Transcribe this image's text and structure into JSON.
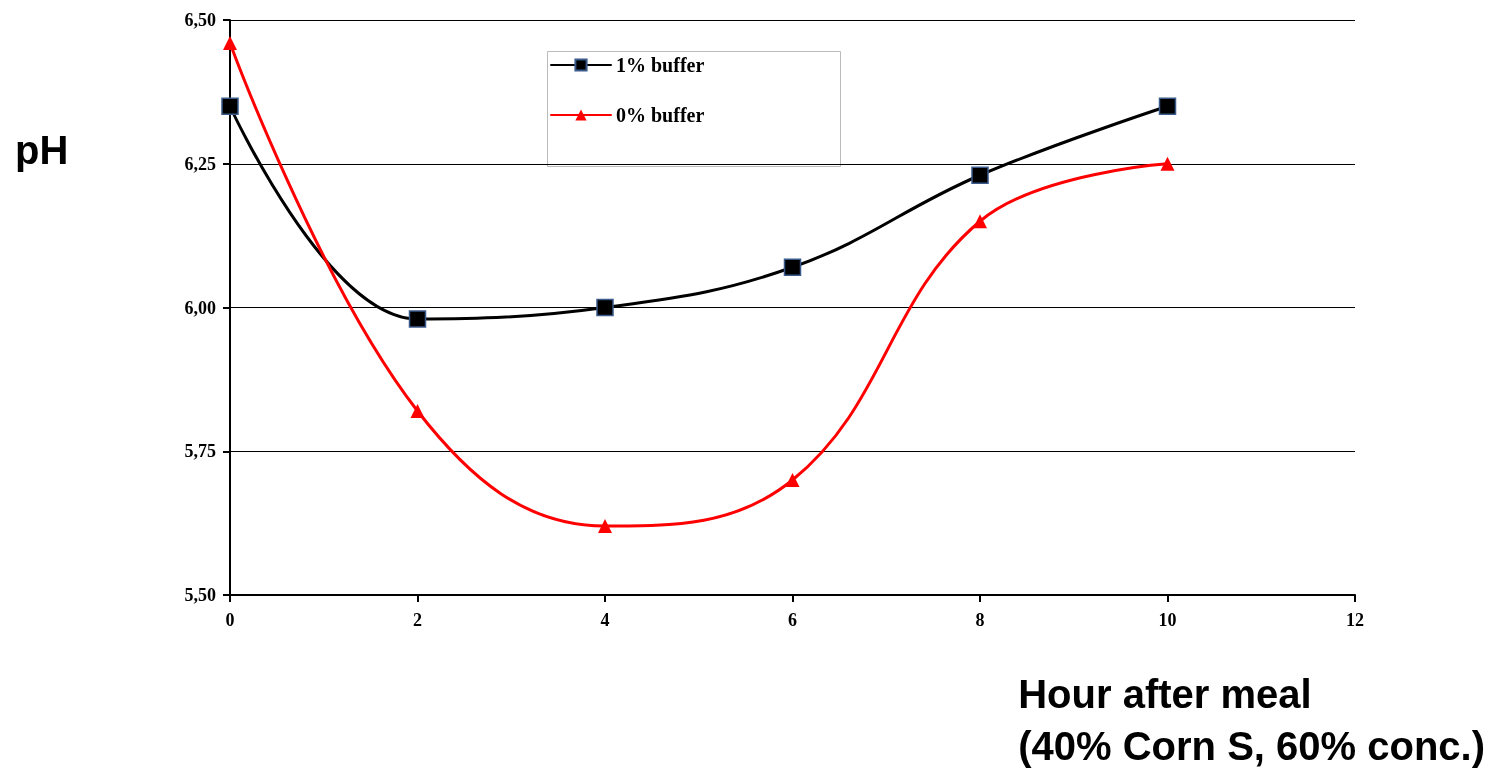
{
  "chart_data": {
    "type": "line",
    "xlabel": "Hour after meal\n(40% Corn S, 60% conc.)",
    "ylabel": "pH",
    "x": [
      0,
      2,
      4,
      6,
      8,
      10
    ],
    "series": [
      {
        "name": "1% buffer",
        "color": "#000000",
        "marker": "square",
        "values": [
          6.35,
          5.98,
          6.0,
          6.07,
          6.23,
          6.35
        ]
      },
      {
        "name": "0% buffer",
        "color": "#ff0000",
        "marker": "triangle",
        "values": [
          6.46,
          5.82,
          5.62,
          5.7,
          6.15,
          6.25
        ]
      }
    ],
    "xlim": [
      0,
      12
    ],
    "xticks": [
      0,
      2,
      4,
      6,
      8,
      10,
      12
    ],
    "ylim": [
      5.5,
      6.5
    ],
    "yticks": [
      {
        "value": 5.5,
        "label": "5,50"
      },
      {
        "value": 5.75,
        "label": "5,75"
      },
      {
        "value": 6.0,
        "label": "6,00"
      },
      {
        "value": 6.25,
        "label": "6,25"
      },
      {
        "value": 6.5,
        "label": "6,50"
      }
    ],
    "grid": "y",
    "legend": "top",
    "line_style": "solid"
  }
}
